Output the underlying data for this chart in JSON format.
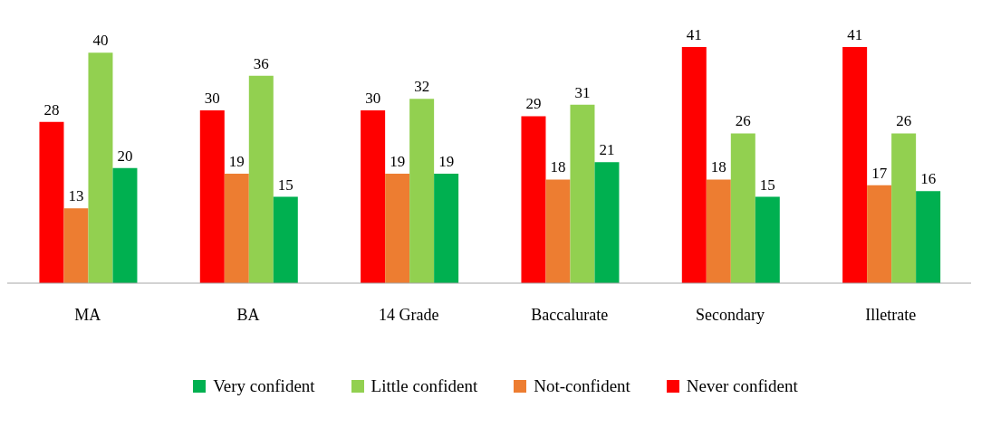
{
  "chart_data": {
    "type": "bar",
    "categories": [
      "MA",
      "BA",
      "14 Grade",
      "Baccalurate",
      "Secondary",
      "Illetrate"
    ],
    "series": [
      {
        "name": "Never confident",
        "color": "#ff0000",
        "values": [
          28,
          30,
          30,
          29,
          41,
          41
        ]
      },
      {
        "name": "Not-confident",
        "color": "#ed7d31",
        "values": [
          13,
          19,
          19,
          18,
          18,
          17
        ]
      },
      {
        "name": "Little confident",
        "color": "#92d050",
        "values": [
          40,
          36,
          32,
          31,
          26,
          26
        ]
      },
      {
        "name": "Very confident",
        "color": "#00b050",
        "values": [
          20,
          15,
          19,
          21,
          15,
          16
        ]
      }
    ],
    "data_labels": true,
    "legend": "bottom",
    "grid": false
  }
}
